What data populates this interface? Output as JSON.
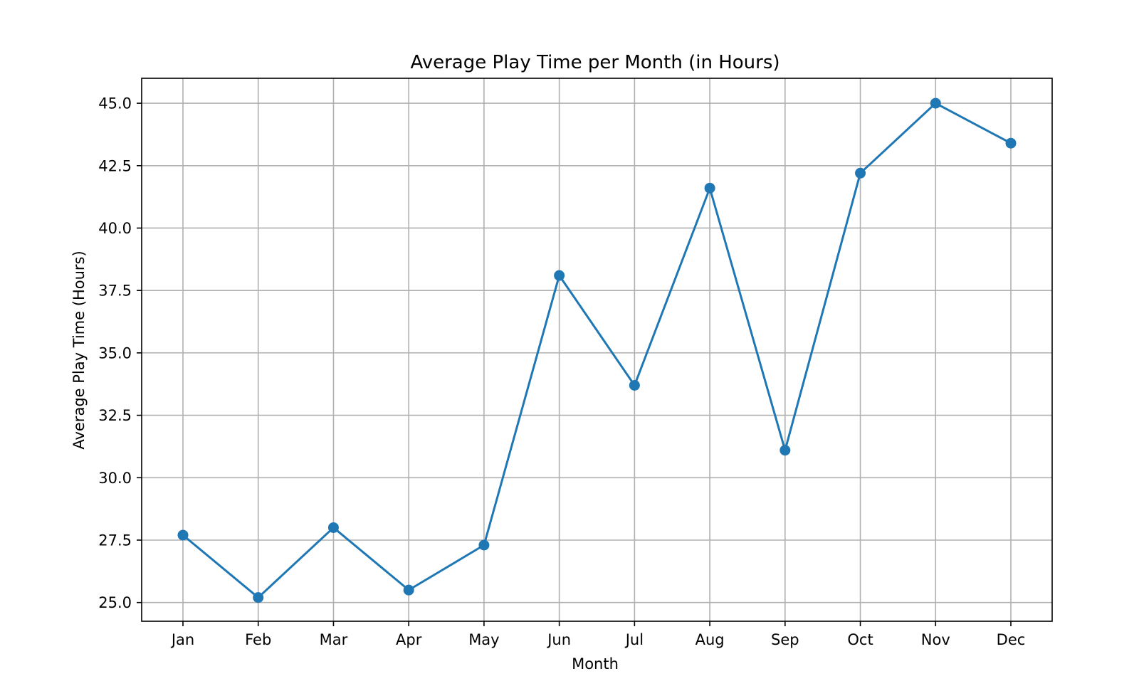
{
  "chart_data": {
    "type": "line",
    "title": "Average Play Time per Month (in Hours)",
    "xlabel": "Month",
    "ylabel": "Average Play Time (Hours)",
    "categories": [
      "Jan",
      "Feb",
      "Mar",
      "Apr",
      "May",
      "Jun",
      "Jul",
      "Aug",
      "Sep",
      "Oct",
      "Nov",
      "Dec"
    ],
    "series": [
      {
        "values": [
          27.7,
          25.2,
          28.0,
          25.5,
          27.3,
          38.1,
          33.7,
          41.6,
          31.1,
          42.2,
          45.0,
          43.4
        ]
      }
    ],
    "ylim": [
      24.25,
      46.0
    ],
    "yticks": [
      "25.0",
      "27.5",
      "30.0",
      "32.5",
      "35.0",
      "37.5",
      "40.0",
      "42.5",
      "45.0"
    ],
    "grid": true,
    "line_color": "#1f77b4",
    "marker": "circle"
  }
}
